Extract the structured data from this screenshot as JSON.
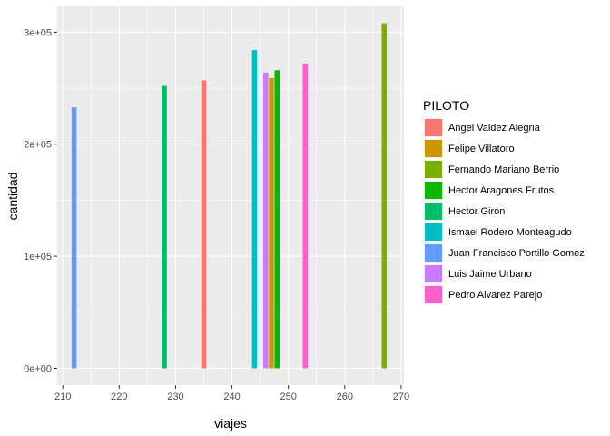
{
  "chart_data": {
    "type": "bar",
    "xlabel": "viajes",
    "ylabel": "cantidad",
    "xlim": [
      209,
      270.5
    ],
    "ylim": [
      -15000,
      323000
    ],
    "x_ticks": [
      210,
      220,
      230,
      240,
      250,
      260,
      270
    ],
    "y_ticks": [
      0,
      100000,
      200000,
      300000
    ],
    "y_tick_labels": [
      "0e+00",
      "1e+05",
      "2e+05",
      "3e+05"
    ],
    "grid": true,
    "legend_position": "right",
    "legend_title": "PILOTO",
    "series": [
      {
        "name": "Angel Valdez Alegria",
        "color": "#F8766D",
        "x": 235,
        "value": 257000
      },
      {
        "name": "Felipe Villatoro",
        "color": "#CD9600",
        "x": 247,
        "value": 259000
      },
      {
        "name": "Fernando Mariano Berrio",
        "color": "#7CAE00",
        "x": 267,
        "value": 308000
      },
      {
        "name": "Hector Aragones Frutos",
        "color": "#0CB702",
        "x": 248,
        "value": 266000
      },
      {
        "name": "Hector Giron",
        "color": "#00BE67",
        "x": 228,
        "value": 252000
      },
      {
        "name": "Ismael Rodero Monteagudo",
        "color": "#00BFC4",
        "x": 244,
        "value": 284000
      },
      {
        "name": "Juan Francisco Portillo Gomez",
        "color": "#619CFF",
        "x": 212,
        "value": 233000
      },
      {
        "name": "Luis Jaime Urbano",
        "color": "#C77CFF",
        "x": 246,
        "value": 264000
      },
      {
        "name": "Pedro Alvarez Parejo",
        "color": "#FF61CC",
        "x": 253,
        "value": 272000
      }
    ]
  }
}
